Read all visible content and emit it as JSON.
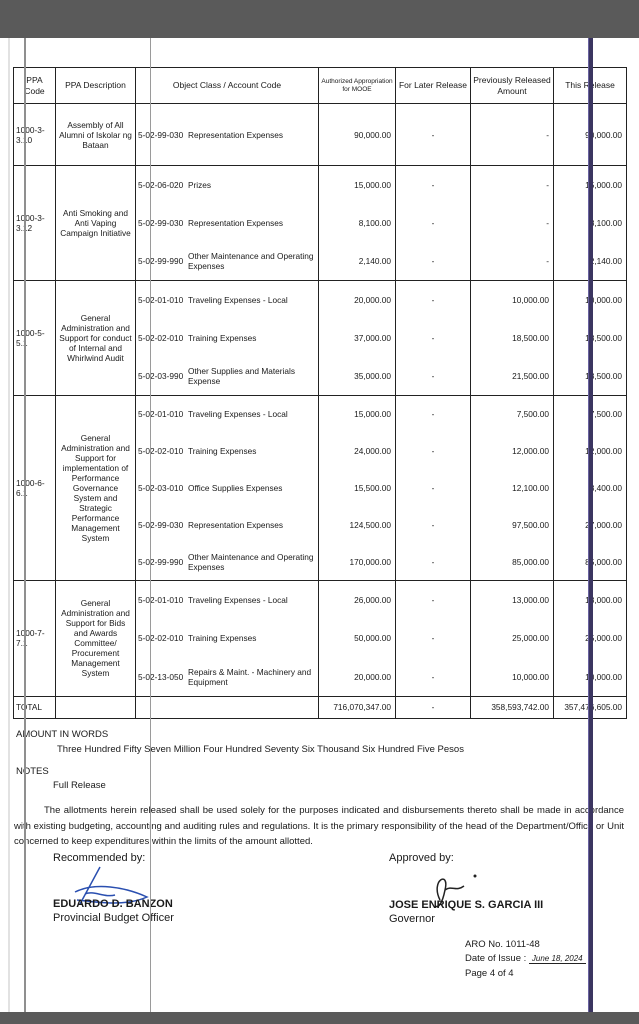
{
  "table": {
    "headers": {
      "ppa_code": "PPA Code",
      "ppa_description": "PPA Description",
      "object_class": "Object Class / Account Code",
      "authorized": "Authorized Appropriation for MOOE",
      "for_later": "For Later Release",
      "previously": "Previously Released Amount",
      "this_release": "This Release"
    },
    "groups": [
      {
        "code": "1000-3-3.10",
        "description": "Assembly of All Alumni of Iskolar ng Bataan",
        "items": [
          {
            "account": "5-02-99-030",
            "name": "Representation Expenses",
            "authorized": "90,000.00",
            "for_later": "-",
            "previously": "-",
            "this_release": "90,000.00"
          }
        ]
      },
      {
        "code": "1000-3-3.12",
        "description": "Anti Smoking and Anti Vaping Campaign Initiative",
        "items": [
          {
            "account": "5-02-06-020",
            "name": "Prizes",
            "authorized": "15,000.00",
            "for_later": "-",
            "previously": "-",
            "this_release": "15,000.00"
          },
          {
            "account": "5-02-99-030",
            "name": "Representation Expenses",
            "authorized": "8,100.00",
            "for_later": "-",
            "previously": "-",
            "this_release": "8,100.00"
          },
          {
            "account": "5-02-99-990",
            "name": "Other Maintenance and Operating Expenses",
            "authorized": "2,140.00",
            "for_later": "-",
            "previously": "-",
            "this_release": "2,140.00"
          }
        ]
      },
      {
        "code": "1000-5-5.1",
        "description": "General Administration and Support for conduct of Internal and Whirlwind Audit",
        "items": [
          {
            "account": "5-02-01-010",
            "name": "Traveling Expenses - Local",
            "authorized": "20,000.00",
            "for_later": "-",
            "previously": "10,000.00",
            "this_release": "10,000.00"
          },
          {
            "account": "5-02-02-010",
            "name": "Training Expenses",
            "authorized": "37,000.00",
            "for_later": "-",
            "previously": "18,500.00",
            "this_release": "18,500.00"
          },
          {
            "account": "5-02-03-990",
            "name": "Other Supplies and Materials Expense",
            "authorized": "35,000.00",
            "for_later": "-",
            "previously": "21,500.00",
            "this_release": "13,500.00"
          }
        ]
      },
      {
        "code": "1000-6-6.1",
        "description": "General Administration and Support for implementation of Performance Governance System and Strategic Performance Management System",
        "items": [
          {
            "account": "5-02-01-010",
            "name": "Traveling Expenses - Local",
            "authorized": "15,000.00",
            "for_later": "-",
            "previously": "7,500.00",
            "this_release": "7,500.00"
          },
          {
            "account": "5-02-02-010",
            "name": "Training Expenses",
            "authorized": "24,000.00",
            "for_later": "-",
            "previously": "12,000.00",
            "this_release": "12,000.00"
          },
          {
            "account": "5-02-03-010",
            "name": "Office Supplies Expenses",
            "authorized": "15,500.00",
            "for_later": "-",
            "previously": "12,100.00",
            "this_release": "3,400.00"
          },
          {
            "account": "5-02-99-030",
            "name": "Representation Expenses",
            "authorized": "124,500.00",
            "for_later": "-",
            "previously": "97,500.00",
            "this_release": "27,000.00"
          },
          {
            "account": "5-02-99-990",
            "name": "Other Maintenance and Operating Expenses",
            "authorized": "170,000.00",
            "for_later": "-",
            "previously": "85,000.00",
            "this_release": "85,000.00"
          }
        ]
      },
      {
        "code": "1000-7-7.1",
        "description": "General Administration and Support for Bids and Awards Committee/ Procurement Management System",
        "items": [
          {
            "account": "5-02-01-010",
            "name": "Traveling Expenses - Local",
            "authorized": "26,000.00",
            "for_later": "-",
            "previously": "13,000.00",
            "this_release": "13,000.00"
          },
          {
            "account": "5-02-02-010",
            "name": "Training Expenses",
            "authorized": "50,000.00",
            "for_later": "-",
            "previously": "25,000.00",
            "this_release": "25,000.00"
          },
          {
            "account": "5-02-13-050",
            "name": "Repairs & Maint. - Machinery and Equipment",
            "authorized": "20,000.00",
            "for_later": "-",
            "previously": "10,000.00",
            "this_release": "10,000.00"
          }
        ]
      }
    ],
    "total": {
      "label": "TOTAL",
      "authorized": "716,070,347.00",
      "for_later": "-",
      "previously": "358,593,742.00",
      "this_release": "357,476,605.00"
    }
  },
  "amount_in_words": {
    "label": "AMOUNT IN WORDS",
    "text": "Three Hundred Fifty Seven Million Four Hundred Seventy Six Thousand Six Hundred Five Pesos"
  },
  "notes": {
    "label": "NOTES",
    "text": "Full Release"
  },
  "paragraph": "The allotments herein released shall be used solely for the purposes indicated and disbursements thereto shall be made in accordance with existing budgeting, accounting and auditing rules and regulations. It is the primary responsibility of the head of the Department/Office or Unit concerned to keep expenditures within the limits of the amount allotted.",
  "recommended": {
    "label": "Recommended by:",
    "name": "EDUARDO D. BANZON",
    "title": "Provincial Budget Officer"
  },
  "approved": {
    "label": "Approved by:",
    "name": "JOSE ENRIQUE S. GARCIA III",
    "title": "Governor"
  },
  "footer": {
    "aro": "ARO No. 1011-48",
    "date_label": "Date of Issue :",
    "date_value": "June 18, 2024",
    "page": "Page 4 of 4"
  }
}
